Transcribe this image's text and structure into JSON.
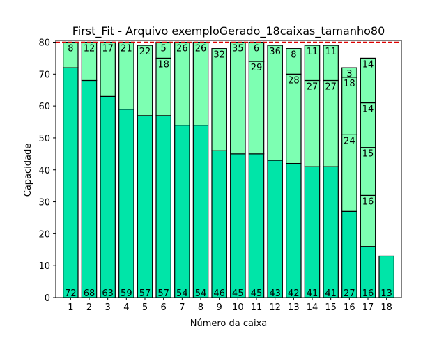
{
  "chart_data": {
    "type": "bar",
    "stacked": true,
    "title": "First_Fit - Arquivo exemploGerado_18caixas_tamanho80",
    "xlabel": "Número da caixa",
    "ylabel": "Capacidade",
    "ylim": [
      0,
      80
    ],
    "yticks": [
      0,
      10,
      20,
      30,
      40,
      50,
      60,
      70,
      80
    ],
    "capacity_line": 80,
    "categories": [
      "1",
      "2",
      "3",
      "4",
      "5",
      "6",
      "7",
      "8",
      "9",
      "10",
      "11",
      "12",
      "13",
      "14",
      "15",
      "16",
      "17",
      "18"
    ],
    "bins": [
      [
        72,
        8
      ],
      [
        68,
        12
      ],
      [
        63,
        17
      ],
      [
        59,
        21
      ],
      [
        57,
        22
      ],
      [
        57,
        18,
        5
      ],
      [
        54,
        26
      ],
      [
        54,
        26
      ],
      [
        46,
        32
      ],
      [
        45,
        35
      ],
      [
        45,
        29,
        6
      ],
      [
        43,
        36
      ],
      [
        42,
        28,
        8
      ],
      [
        41,
        27,
        11
      ],
      [
        41,
        27,
        11
      ],
      [
        27,
        24,
        18,
        3
      ],
      [
        16,
        16,
        15,
        14,
        14
      ],
      [
        13
      ]
    ],
    "colors": {
      "dark_segment": "#00e5a8",
      "light_segment": "#7dffb2",
      "edge": "#000000",
      "capacity_line": "#dd0000"
    },
    "grid": false,
    "legend": "none"
  }
}
